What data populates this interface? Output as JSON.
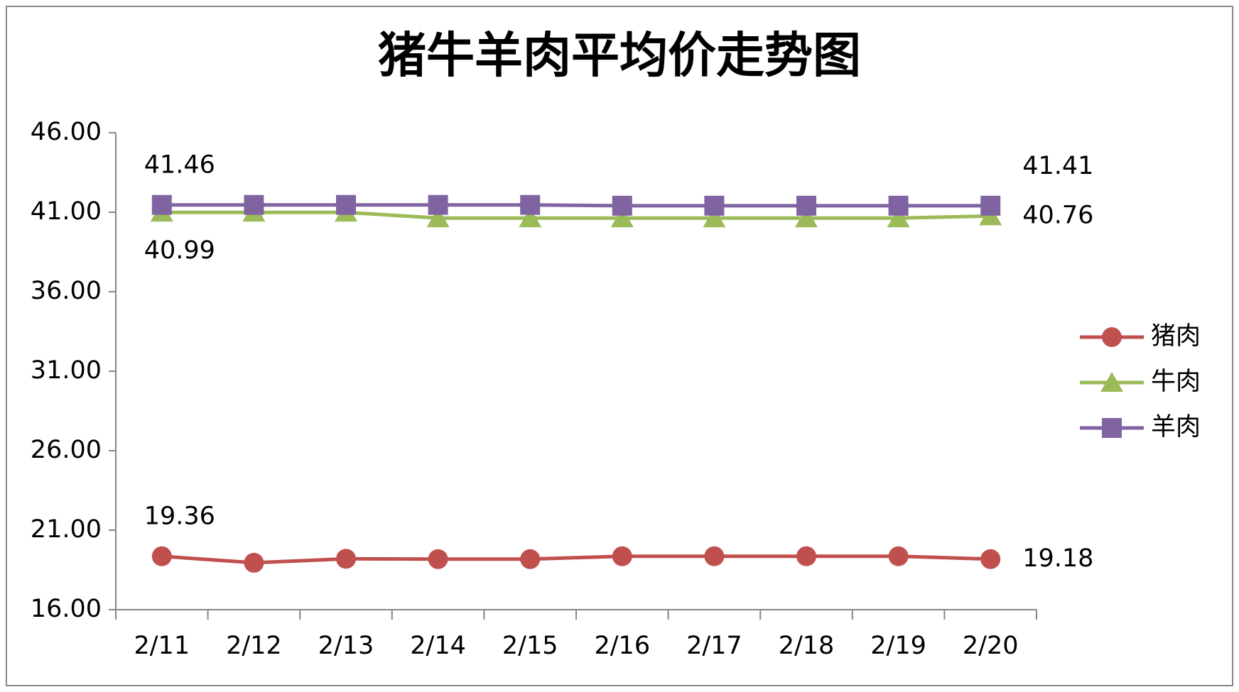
{
  "chart_data": {
    "type": "line",
    "title": "猪牛羊肉平均价走势图",
    "categories": [
      "2/11",
      "2/12",
      "2/13",
      "2/14",
      "2/15",
      "2/16",
      "2/17",
      "2/18",
      "2/19",
      "2/20"
    ],
    "series": [
      {
        "name": "猪肉",
        "color": "#c0504d",
        "marker": "circle",
        "values": [
          19.36,
          18.95,
          19.2,
          19.18,
          19.18,
          19.36,
          19.36,
          19.36,
          19.36,
          19.18
        ]
      },
      {
        "name": "牛肉",
        "color": "#9bbb59",
        "marker": "triangle",
        "values": [
          40.99,
          40.99,
          40.99,
          40.63,
          40.63,
          40.63,
          40.63,
          40.63,
          40.63,
          40.76
        ]
      },
      {
        "name": "羊肉",
        "color": "#8064a2",
        "marker": "square",
        "values": [
          41.46,
          41.46,
          41.46,
          41.46,
          41.46,
          41.41,
          41.41,
          41.41,
          41.41,
          41.41
        ]
      }
    ],
    "ylim": [
      16,
      46
    ],
    "yticks": [
      {
        "value": 16,
        "label": "16.00"
      },
      {
        "value": 21,
        "label": "21.00"
      },
      {
        "value": 26,
        "label": "26.00"
      },
      {
        "value": 31,
        "label": "31.00"
      },
      {
        "value": 36,
        "label": "36.00"
      },
      {
        "value": 41,
        "label": "41.00"
      },
      {
        "value": 46,
        "label": "46.00"
      }
    ],
    "data_labels": "first-last",
    "legend": "right"
  }
}
